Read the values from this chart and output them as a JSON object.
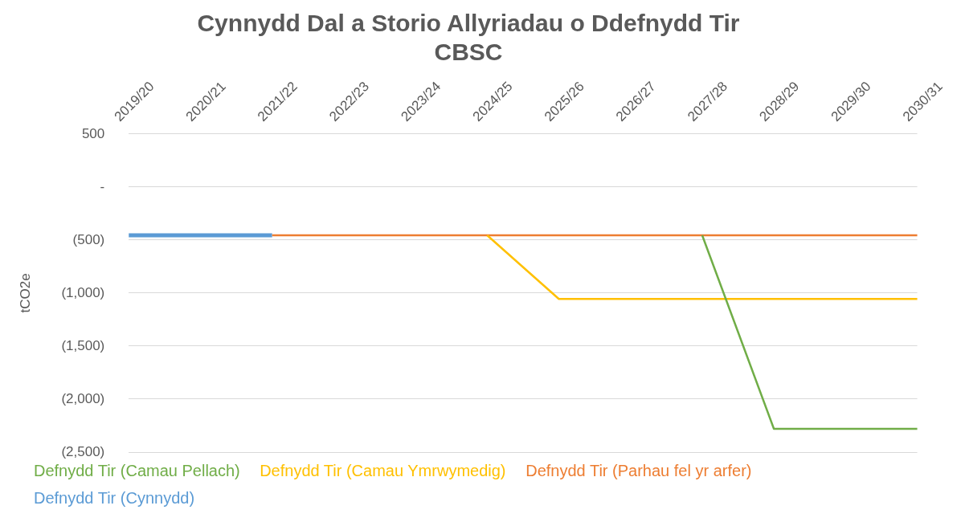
{
  "chart_data": {
    "type": "line",
    "title": "Cynnydd Dal a Storio Allyriadau o Ddefnydd Tir\nCBSC",
    "ylabel": "tCO2e",
    "categories": [
      "2019/20",
      "2020/21",
      "2021/22",
      "2022/23",
      "2023/24",
      "2024/25",
      "2025/26",
      "2026/27",
      "2027/28",
      "2028/29",
      "2029/30",
      "2030/31"
    ],
    "series": [
      {
        "name": "Defnydd Tir (Camau Pellach)",
        "color": "#70ad47",
        "values": [
          null,
          null,
          null,
          null,
          null,
          null,
          null,
          null,
          -455,
          -2280,
          -2280,
          -2280
        ]
      },
      {
        "name": "Defnydd Tir (Camau Ymrwymedig)",
        "color": "#ffc000",
        "values": [
          null,
          null,
          null,
          null,
          null,
          -455,
          -1055,
          -1055,
          -1055,
          -1055,
          -1055,
          -1055
        ]
      },
      {
        "name": "Defnydd Tir (Parhau fel yr arfer)",
        "color": "#ed7d31",
        "values": [
          null,
          null,
          -455,
          -455,
          -455,
          -455,
          -455,
          -455,
          -455,
          -455,
          -455,
          -455
        ]
      },
      {
        "name": "Defnydd Tir (Cynnydd)",
        "color": "#5b9bd5",
        "values": [
          -455,
          -455,
          -455,
          null,
          null,
          null,
          null,
          null,
          null,
          null,
          null,
          null
        ]
      }
    ],
    "ylim": [
      -2500,
      500
    ],
    "yticks": [
      {
        "value": 500,
        "label": "500"
      },
      {
        "value": 0,
        "label": "-"
      },
      {
        "value": -500,
        "label": "(500)"
      },
      {
        "value": -1000,
        "label": "(1,000)"
      },
      {
        "value": -1500,
        "label": "(1,500)"
      },
      {
        "value": -2000,
        "label": "(2,000)"
      },
      {
        "value": -2500,
        "label": "(2,500)"
      }
    ],
    "grid": "y",
    "legend": "bottom",
    "marker": "none",
    "line_style": "solid"
  }
}
